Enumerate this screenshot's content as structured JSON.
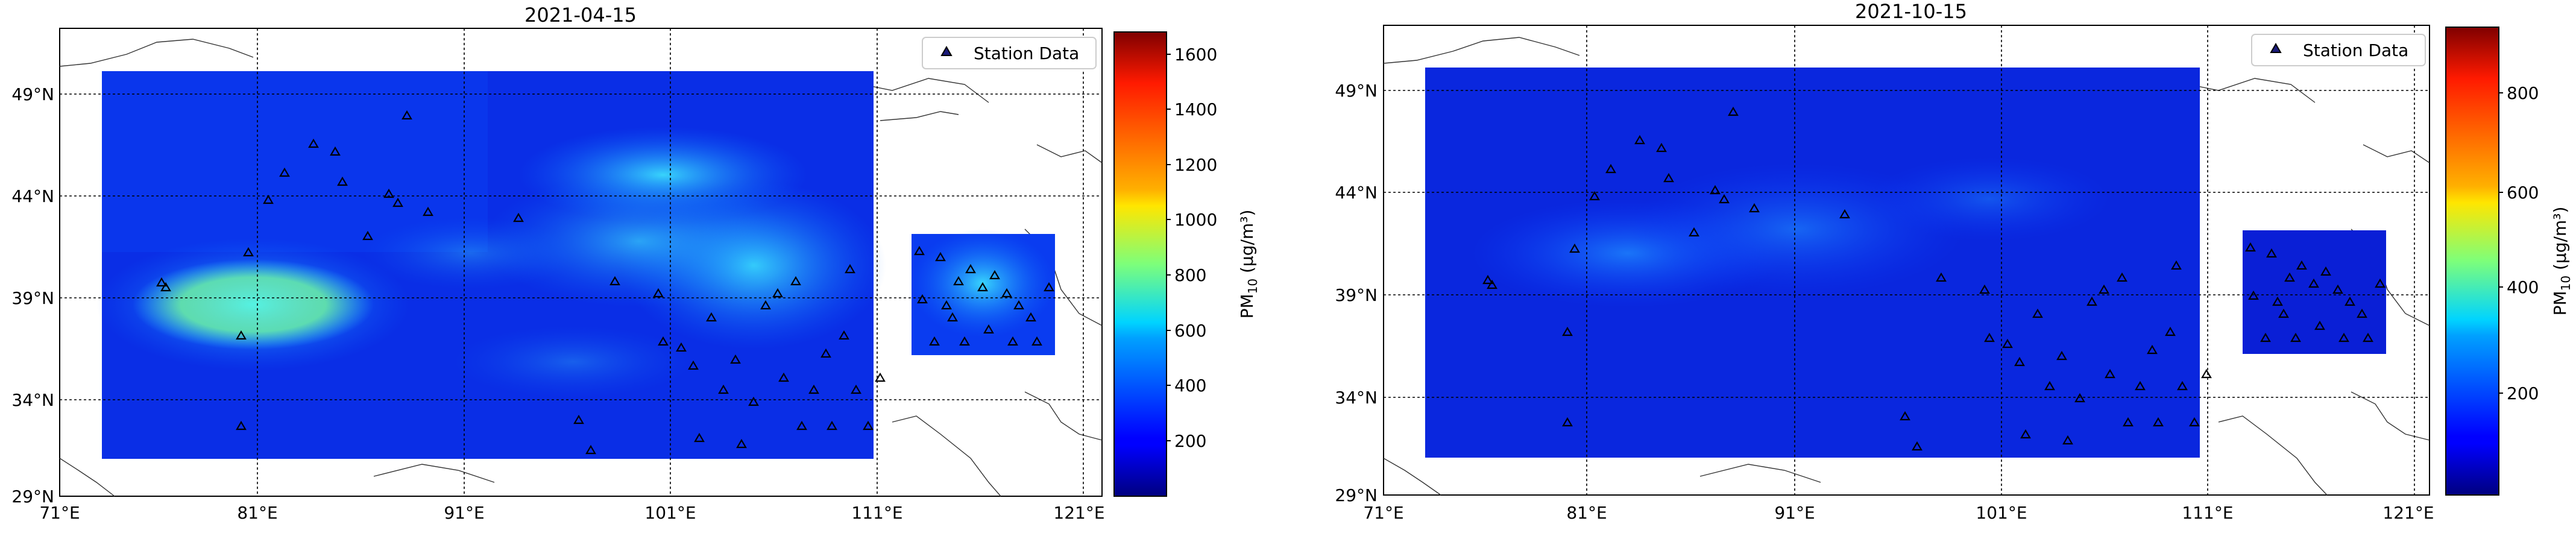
{
  "panels": [
    {
      "id": "left",
      "title": "2021-04-15",
      "legend_label": "Station Data",
      "colorbar": {
        "label": "PM",
        "label_sub": "10",
        "label_unit": " (µg/m³)",
        "ticks": [
          200,
          400,
          600,
          800,
          1000,
          1200,
          1400,
          1600
        ],
        "min": 0,
        "max": 1680
      },
      "x_ticks": [
        "71°E",
        "81°E",
        "91°E",
        "101°E",
        "111°E",
        "121°E"
      ],
      "y_ticks": [
        "29°N",
        "34°N",
        "39°N",
        "44°N",
        "49°N"
      ],
      "map_extent": {
        "lon": [
          71,
          121
        ],
        "lat": [
          29,
          52
        ]
      }
    },
    {
      "id": "right",
      "title": "2021-10-15",
      "legend_label": "Station Data",
      "colorbar": {
        "label": "PM",
        "label_sub": "10",
        "label_unit": " (µg/m³)",
        "ticks": [
          200,
          400,
          600,
          800
        ],
        "min": 0,
        "max": 920
      },
      "x_ticks": [
        "71°E",
        "81°E",
        "91°E",
        "101°E",
        "111°E",
        "121°E"
      ],
      "y_ticks": [
        "29°N",
        "34°N",
        "39°N",
        "44°N",
        "49°N"
      ],
      "map_extent": {
        "lon": [
          71,
          121
        ],
        "lat": [
          29,
          52
        ]
      }
    }
  ],
  "colors": {
    "field_base": "#0a2ee6",
    "station_marker": "#1a1a7a"
  }
}
